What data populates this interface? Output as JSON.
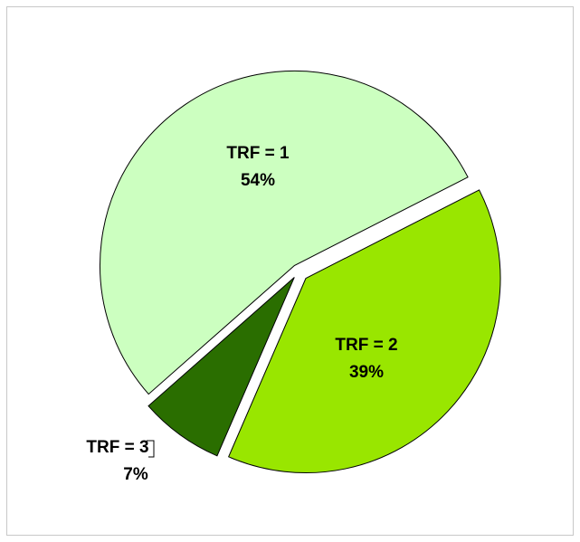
{
  "chart_data": {
    "type": "pie",
    "categories": [
      "TRF = 1",
      "TRF = 2",
      "TRF = 3"
    ],
    "values": [
      54,
      39,
      7
    ],
    "value_labels": [
      "54%",
      "39%",
      "7%"
    ],
    "colors": [
      "#ccffc0",
      "#99e600",
      "#2a6e00"
    ]
  }
}
